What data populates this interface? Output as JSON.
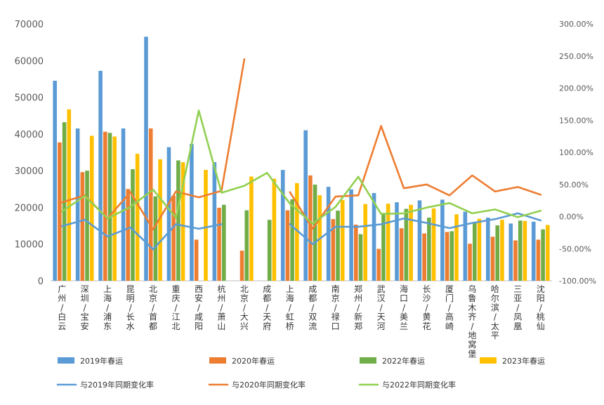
{
  "chart_data": {
    "type": "bar",
    "categories": [
      "广州/白云",
      "深圳/宝安",
      "上海/浦东",
      "昆明/长水",
      "北京/首都",
      "重庆/江北",
      "西安/咸阳",
      "杭州/萧山",
      "北京/大兴",
      "成都/天府",
      "上海/虹桥",
      "成都/双流",
      "南京/禄口",
      "郑州/新郑",
      "武汉/天河",
      "海口/美兰",
      "长沙/黄花",
      "厦门/高崎",
      "乌鲁木齐/地窝堡",
      "哈尔滨/太平",
      "三亚/凤凰",
      "沈阳/桃仙"
    ],
    "left_axis": {
      "ylim": [
        0,
        70000
      ],
      "ticks": [
        "0",
        "10000",
        "20000",
        "30000",
        "40000",
        "50000",
        "60000",
        "70000"
      ],
      "tick_values": [
        0,
        10000,
        20000,
        30000,
        40000,
        50000,
        60000,
        70000
      ]
    },
    "right_axis": {
      "ylim": [
        -100,
        300
      ],
      "ticks": [
        "-100.00%",
        "-50.00%",
        "0.00%",
        "50.00%",
        "100.00%",
        "150.00%",
        "200.00%",
        "250.00%",
        "300.00%"
      ],
      "tick_values": [
        -100,
        -50,
        0,
        50,
        100,
        150,
        200,
        250,
        300
      ]
    },
    "bar_series": [
      {
        "name": "2019年春运",
        "color": "#5b9bd5",
        "values": [
          54500,
          41500,
          57200,
          41500,
          66500,
          36400,
          37300,
          32300,
          null,
          null,
          30200,
          41000,
          25600,
          24900,
          23900,
          21400,
          21900,
          22100,
          18800,
          17200,
          15600,
          16100
        ]
      },
      {
        "name": "2020年春运",
        "color": "#ed7d31",
        "values": [
          37700,
          29600,
          40600,
          25000,
          41500,
          23200,
          11200,
          19900,
          8200,
          null,
          19200,
          28700,
          16800,
          15300,
          8700,
          14300,
          12900,
          13300,
          10100,
          12000,
          11000,
          11200
        ]
      },
      {
        "name": "2022年春运",
        "color": "#70ad47",
        "values": [
          43200,
          30000,
          40300,
          30400,
          23000,
          32800,
          null,
          20700,
          19200,
          16600,
          22200,
          26200,
          19100,
          12700,
          18500,
          19600,
          17200,
          13500,
          15900,
          15100,
          16400,
          14000
        ]
      },
      {
        "name": "2023年春运",
        "color": "#ffc000",
        "values": [
          46700,
          39500,
          39300,
          34600,
          33100,
          32300,
          30200,
          null,
          28400,
          27800,
          26600,
          23300,
          22000,
          20900,
          21000,
          20700,
          19700,
          18100,
          16900,
          16600,
          16300,
          15200
        ]
      }
    ],
    "line_series": [
      {
        "name": "与2019年同期变化率",
        "color": "#5b9bd5",
        "values": [
          -15,
          -5,
          -31,
          -17,
          -51,
          -12,
          -19,
          -12,
          null,
          null,
          -12,
          -43,
          -16,
          -16,
          -12,
          -3,
          -10,
          -18,
          -10,
          -4,
          5,
          -6
        ]
      },
      {
        "name": "与2020年同期变化率",
        "color": "#ed7d31",
        "values": [
          22,
          33,
          -3,
          38,
          -20,
          39,
          30,
          40,
          245,
          null,
          38,
          -19,
          31,
          33,
          141,
          44,
          50,
          33,
          64,
          39,
          46,
          34
        ]
      },
      {
        "name": "与2022年同期变化率",
        "color": "#92d050",
        "values": [
          8,
          32,
          -3,
          15,
          42,
          -2,
          165,
          37,
          48,
          68,
          20,
          -11,
          15,
          62,
          4,
          5,
          14,
          21,
          5,
          11,
          -1,
          9
        ]
      }
    ],
    "legend": [
      "2019年春运",
      "2020年春运",
      "2022年春运",
      "2023年春运",
      "与2019年同期变化率",
      "与2020年同期变化率",
      "与2022年同期变化率"
    ],
    "legend_position": "bottom",
    "grid": false
  }
}
